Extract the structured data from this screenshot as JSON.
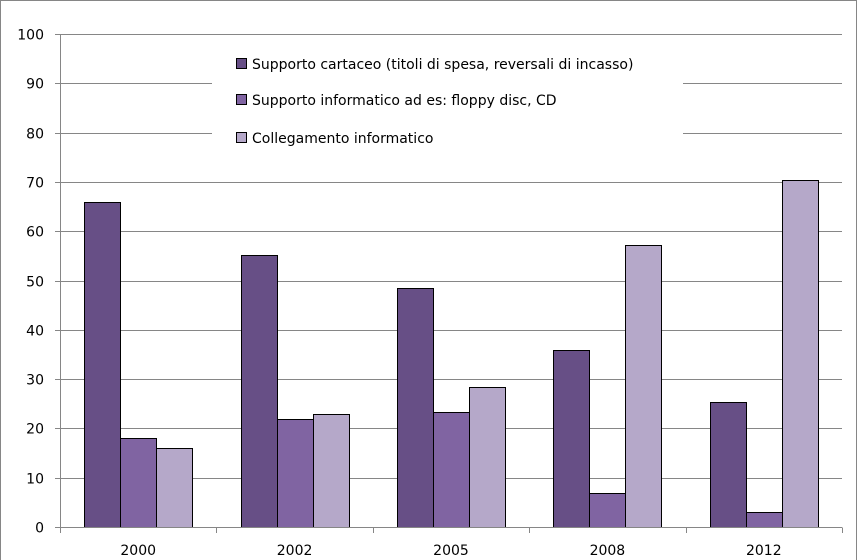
{
  "chart_data": {
    "type": "bar",
    "title": "",
    "xlabel": "",
    "ylabel": "",
    "categories": [
      "2000",
      "2002",
      "2005",
      "2008",
      "2012"
    ],
    "ylim": [
      0,
      100
    ],
    "yticks": [
      0,
      10,
      20,
      30,
      40,
      50,
      60,
      70,
      80,
      90,
      100
    ],
    "grid": true,
    "legend_position": "top-center",
    "series": [
      {
        "name": "Supporto cartaceo (titoli di spesa, reversali di incasso)",
        "color": "#674F86",
        "values": [
          66,
          55.2,
          48.5,
          36,
          25.3
        ]
      },
      {
        "name": "Supporto informatico ad es: floppy disc, CD",
        "color": "#8064A2",
        "values": [
          18,
          22,
          23.3,
          6.8,
          3
        ]
      },
      {
        "name": "Collegamento informatico",
        "color": "#B5A8C9",
        "values": [
          16,
          23,
          28.3,
          57.2,
          70.3
        ]
      }
    ]
  }
}
